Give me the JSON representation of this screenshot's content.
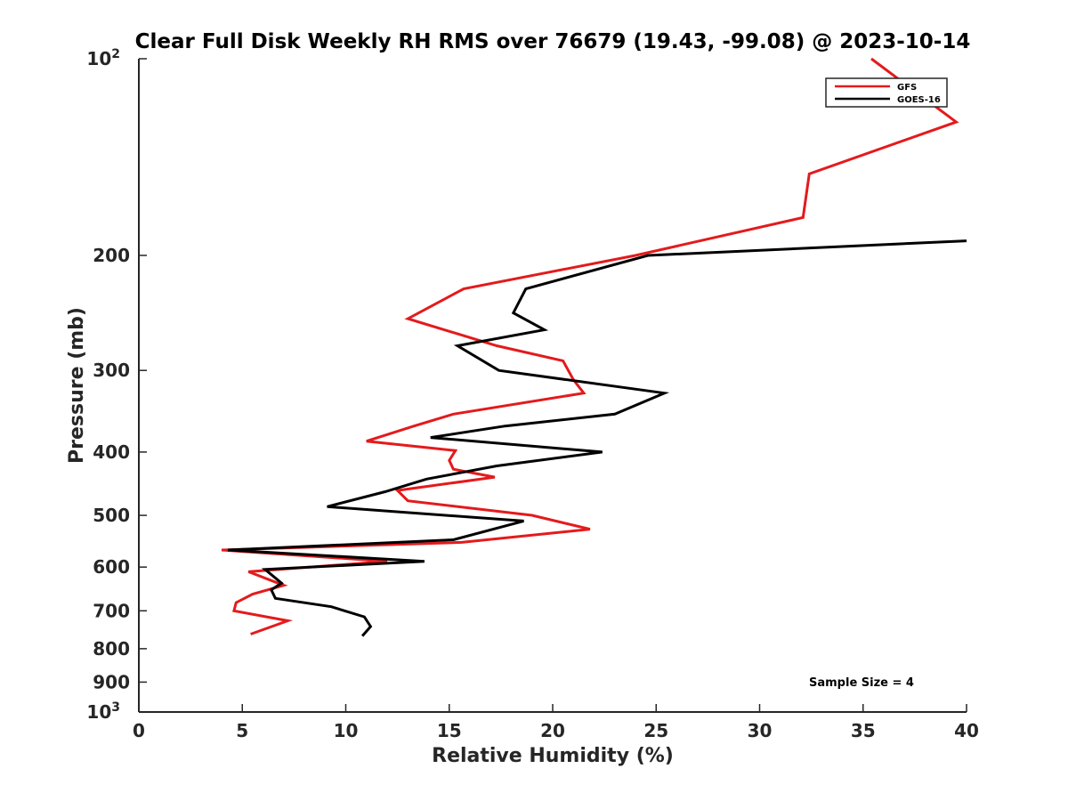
{
  "chart_data": {
    "type": "line",
    "title": "Clear Full Disk Weekly RH RMS over 76679 (19.43, -99.08) @ 2023-10-14",
    "xlabel": "Relative Humidity (%)",
    "ylabel": "Pressure (mb)",
    "xlim": [
      0,
      40
    ],
    "ylim": [
      100,
      1000
    ],
    "y_scale": "log",
    "y_reversed": true,
    "x_ticks": [
      "0",
      "5",
      "10",
      "15",
      "20",
      "25",
      "30",
      "35",
      "40"
    ],
    "y_ticks": [
      {
        "value": 100,
        "base": "10",
        "exp": "2"
      },
      {
        "value": 200,
        "base": "200",
        "exp": ""
      },
      {
        "value": 300,
        "base": "300",
        "exp": ""
      },
      {
        "value": 400,
        "base": "400",
        "exp": ""
      },
      {
        "value": 500,
        "base": "500",
        "exp": ""
      },
      {
        "value": 600,
        "base": "600",
        "exp": ""
      },
      {
        "value": 700,
        "base": "700",
        "exp": ""
      },
      {
        "value": 800,
        "base": "800",
        "exp": ""
      },
      {
        "value": 900,
        "base": "900",
        "exp": ""
      },
      {
        "value": 1000,
        "base": "10",
        "exp": "3"
      }
    ],
    "grid": false,
    "legend_position": "top-right",
    "series": [
      {
        "name": "GFS",
        "color": "#e41a1c",
        "points": [
          [
            35.4,
            100
          ],
          [
            39.5,
            125
          ],
          [
            32.4,
            150
          ],
          [
            32.1,
            175
          ],
          [
            24,
            200
          ],
          [
            15.7,
            225
          ],
          [
            13,
            250
          ],
          [
            17.3,
            275
          ],
          [
            20.5,
            290
          ],
          [
            21,
            310
          ],
          [
            21.5,
            325
          ],
          [
            15.2,
            350
          ],
          [
            13.3,
            365
          ],
          [
            11,
            385
          ],
          [
            15.3,
            398
          ],
          [
            15,
            412
          ],
          [
            15.2,
            425
          ],
          [
            17.2,
            437
          ],
          [
            12.5,
            458
          ],
          [
            13,
            475
          ],
          [
            19,
            500
          ],
          [
            21.8,
            525
          ],
          [
            15.6,
            550
          ],
          [
            4,
            565
          ],
          [
            12,
            588
          ],
          [
            5.3,
            610
          ],
          [
            7,
            640
          ],
          [
            5.5,
            660
          ],
          [
            4.7,
            680
          ],
          [
            4.6,
            700
          ],
          [
            7.2,
            725
          ],
          [
            5.4,
            760
          ]
        ]
      },
      {
        "name": "GOES-16",
        "color": "#000000",
        "points": [
          [
            40,
            190
          ],
          [
            24.6,
            200
          ],
          [
            18.7,
            225
          ],
          [
            18.1,
            245
          ],
          [
            19.6,
            260
          ],
          [
            15.4,
            275
          ],
          [
            17.4,
            300
          ],
          [
            25.4,
            325
          ],
          [
            23,
            350
          ],
          [
            17.7,
            365
          ],
          [
            14.1,
            380
          ],
          [
            22.4,
            400
          ],
          [
            17.3,
            420
          ],
          [
            13.9,
            440
          ],
          [
            11.9,
            460
          ],
          [
            9.1,
            485
          ],
          [
            18.6,
            510
          ],
          [
            15.2,
            545
          ],
          [
            4.3,
            565
          ],
          [
            13.8,
            588
          ],
          [
            6.1,
            605
          ],
          [
            6.9,
            635
          ],
          [
            6.4,
            650
          ],
          [
            6.6,
            670
          ],
          [
            9.3,
            690
          ],
          [
            10.9,
            715
          ],
          [
            11.2,
            740
          ],
          [
            10.8,
            765
          ]
        ]
      }
    ],
    "annotations": [
      {
        "text": "Sample Size = 4"
      }
    ]
  }
}
